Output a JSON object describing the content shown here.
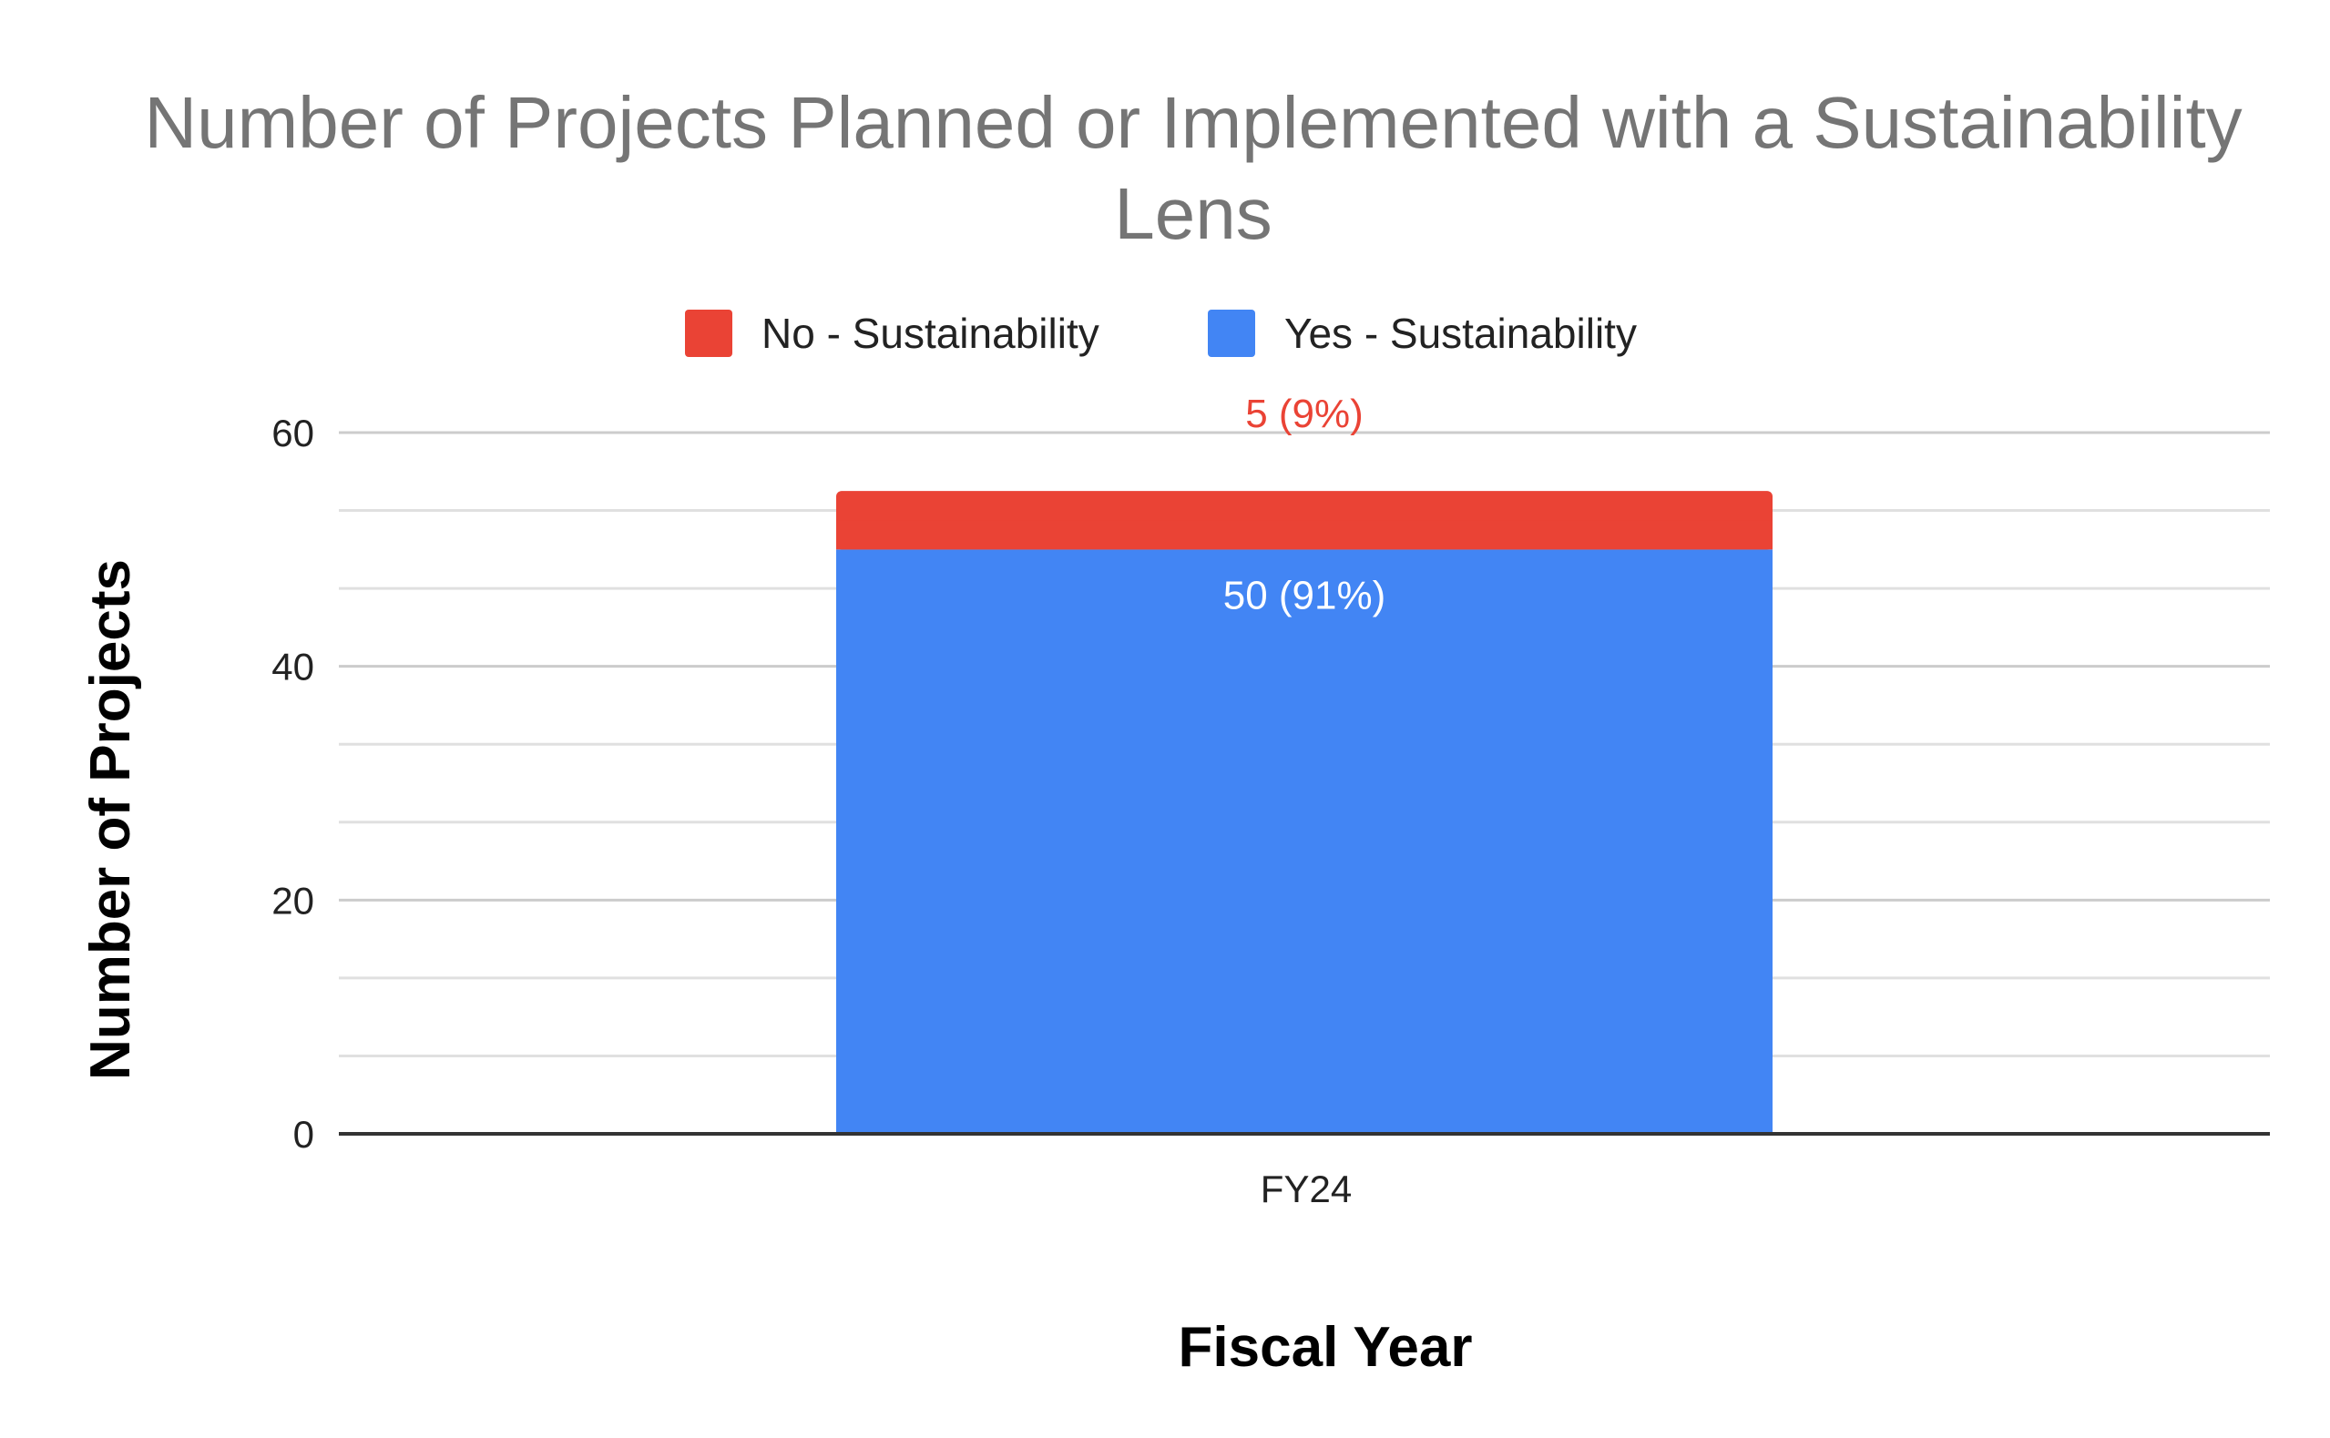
{
  "colors": {
    "no_sustainability": "#EA4335",
    "yes_sustainability": "#4285F4",
    "title": "#757575",
    "gridline": "#E0E0E0",
    "axis": "#333333"
  },
  "chart_data": {
    "type": "bar",
    "stacked": true,
    "title_lines": [
      "Number of Projects Planned or Implemented with a Sustainability",
      "Lens"
    ],
    "xlabel": "Fiscal Year",
    "ylabel": "Number of Projects",
    "categories": [
      "FY24"
    ],
    "ylim": [
      0,
      60
    ],
    "yticks": [
      "0",
      "20",
      "40",
      "60"
    ],
    "minor_gridlines": true,
    "legend_position": "top",
    "series": [
      {
        "name": "Yes - Sustainability",
        "values": [
          50
        ],
        "labels": [
          "50 (91%)"
        ],
        "color": "#4285F4"
      },
      {
        "name": "No - Sustainability",
        "values": [
          5
        ],
        "labels": [
          "5 (9%)"
        ],
        "color": "#EA4335"
      }
    ],
    "legend_order": [
      "No - Sustainability",
      "Yes - Sustainability"
    ]
  }
}
